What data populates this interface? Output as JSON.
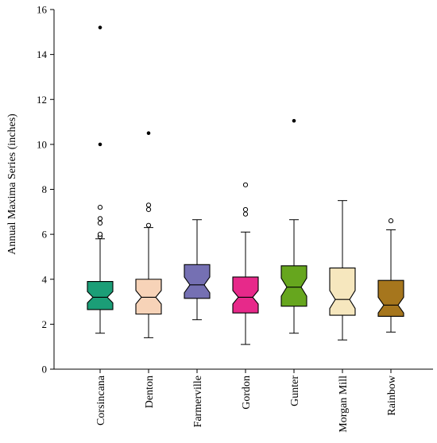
{
  "chart_data": {
    "type": "box",
    "title": "",
    "xlabel": "",
    "ylabel": "Annual Maxima Series (inches)",
    "ylim": [
      0,
      16
    ],
    "yticks": [
      0,
      2,
      4,
      6,
      8,
      10,
      12,
      14,
      16
    ],
    "grid": false,
    "notched": true,
    "categories": [
      "Corsincana",
      "Denton",
      "Farmerville",
      "Gordon",
      "Gunter",
      "Morgan Mill",
      "Rainbow"
    ],
    "boxes": [
      {
        "name": "Corsincana",
        "color": "#1b9e77",
        "min": 1.6,
        "q1": 2.65,
        "median": 3.2,
        "q3": 3.9,
        "max": 5.8,
        "notch": 0.25,
        "outliers": [
          5.9,
          6.0,
          6.5,
          6.7,
          7.2
        ],
        "extremes": [
          10.0,
          15.2
        ]
      },
      {
        "name": "Denton",
        "color": "#f7d3b8",
        "min": 1.4,
        "q1": 2.45,
        "median": 3.2,
        "q3": 4.0,
        "max": 6.3,
        "notch": 0.3,
        "outliers": [
          6.4,
          7.1,
          7.3
        ],
        "extremes": [
          10.5
        ]
      },
      {
        "name": "Farmerville",
        "color": "#7570b3",
        "min": 2.2,
        "q1": 3.15,
        "median": 3.75,
        "q3": 4.65,
        "max": 6.65,
        "notch": 0.35,
        "outliers": [],
        "extremes": []
      },
      {
        "name": "Gordon",
        "color": "#e7298a",
        "min": 1.1,
        "q1": 2.5,
        "median": 3.2,
        "q3": 4.1,
        "max": 6.1,
        "notch": 0.3,
        "outliers": [
          6.9,
          7.1,
          8.2
        ],
        "extremes": []
      },
      {
        "name": "Gunter",
        "color": "#66a61e",
        "min": 1.6,
        "q1": 2.8,
        "median": 3.65,
        "q3": 4.6,
        "max": 6.65,
        "notch": 0.4,
        "outliers": [],
        "extremes": [
          11.05
        ]
      },
      {
        "name": "Morgan Mill",
        "color": "#f6e7be",
        "min": 1.3,
        "q1": 2.4,
        "median": 3.1,
        "q3": 4.5,
        "max": 7.5,
        "notch": 0.4,
        "outliers": [],
        "extremes": []
      },
      {
        "name": "Rainbow",
        "color": "#a6761d",
        "min": 1.65,
        "q1": 2.35,
        "median": 2.85,
        "q3": 3.95,
        "max": 6.2,
        "notch": 0.35,
        "outliers": [
          6.6
        ],
        "extremes": []
      }
    ]
  }
}
